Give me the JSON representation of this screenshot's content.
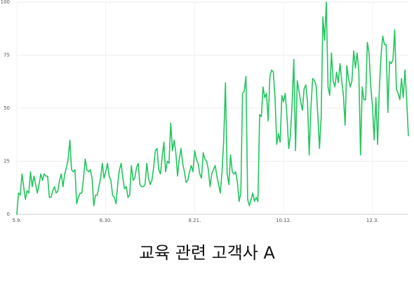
{
  "chart_data": {
    "type": "line",
    "title": "",
    "xlabel": "",
    "ylabel": "",
    "ylim": [
      0,
      100
    ],
    "grid": true,
    "color": "#22c55e",
    "y_ticks": [
      "0",
      "25",
      "50",
      "75",
      "100"
    ],
    "x_ticks": [
      {
        "index": 0,
        "label": "5.9."
      },
      {
        "index": 52,
        "label": "6.30."
      },
      {
        "index": 104,
        "label": "8.21."
      },
      {
        "index": 156,
        "label": "10.12."
      },
      {
        "index": 208,
        "label": "12.3."
      }
    ],
    "series": [
      {
        "values": [
          0,
          10,
          9,
          19,
          13,
          7,
          11,
          10,
          20,
          13,
          18,
          14,
          10,
          14,
          19,
          16,
          19,
          18,
          18,
          8,
          8,
          11,
          13,
          10,
          11,
          16,
          19,
          13,
          19,
          22,
          26,
          35,
          21,
          20,
          21,
          5,
          8,
          10,
          10,
          17,
          26,
          21,
          20,
          21,
          17,
          4,
          9,
          9,
          13,
          17,
          24,
          17,
          20,
          24,
          18,
          16,
          9,
          8,
          5,
          14,
          21,
          24,
          17,
          12,
          13,
          8,
          9,
          23,
          16,
          17,
          22,
          24,
          14,
          13,
          13,
          14,
          24,
          17,
          14,
          16,
          22,
          30,
          31,
          21,
          19,
          27,
          34,
          20,
          25,
          24,
          43,
          30,
          35,
          29,
          18,
          26,
          31,
          24,
          20,
          15,
          16,
          20,
          23,
          20,
          30,
          26,
          24,
          19,
          17,
          29,
          26,
          25,
          21,
          13,
          19,
          21,
          23,
          18,
          14,
          10,
          20,
          35,
          62,
          19,
          14,
          28,
          20,
          19,
          20,
          15,
          6,
          10,
          57,
          58,
          65,
          7,
          4,
          7,
          10,
          6,
          8,
          6,
          47,
          46,
          60,
          55,
          57,
          44,
          65,
          68,
          67,
          55,
          33,
          38,
          34,
          56,
          53,
          57,
          46,
          31,
          37,
          52,
          73,
          30,
          63,
          58,
          53,
          49,
          59,
          61,
          53,
          28,
          50,
          64,
          63,
          61,
          47,
          31,
          46,
          93,
          82,
          100,
          60,
          56,
          76,
          63,
          60,
          67,
          62,
          71,
          63,
          56,
          42,
          70,
          64,
          60,
          63,
          77,
          69,
          76,
          68,
          28,
          60,
          54,
          54,
          81,
          76,
          60,
          51,
          35,
          55,
          33,
          59,
          75,
          84,
          80,
          80,
          48,
          72,
          71,
          73,
          87,
          59,
          57,
          54,
          64,
          55,
          68,
          54,
          37
        ]
      }
    ]
  },
  "caption": "교육 관련 고객사 A"
}
